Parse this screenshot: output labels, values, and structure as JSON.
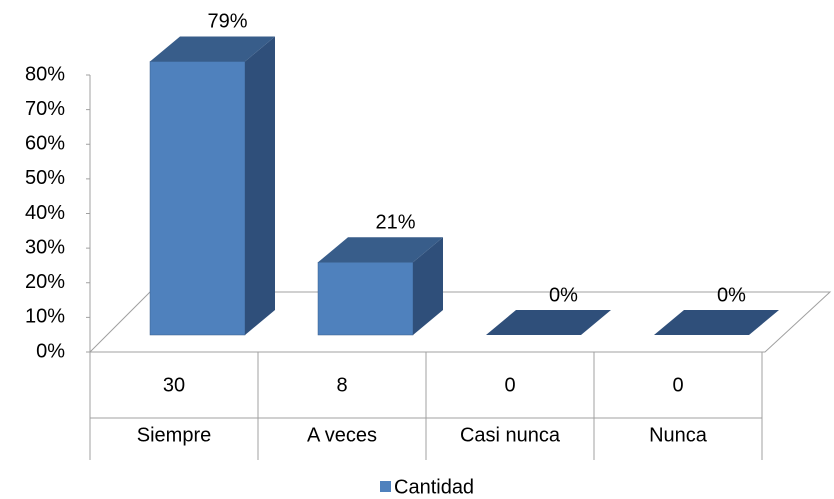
{
  "chart_data": {
    "type": "bar3d",
    "categories": [
      "Siempre",
      "A veces",
      "Casi nunca",
      "Nunca"
    ],
    "series": [
      {
        "name": "Cantidad",
        "color": "#4f81bd",
        "values": [
          79,
          21,
          0,
          0
        ],
        "value_labels": [
          "79%",
          "21%",
          "0%",
          "0%"
        ],
        "counts": [
          30,
          8,
          0,
          0
        ]
      }
    ],
    "ylim": [
      0,
      80
    ],
    "yticks": [
      {
        "value": 0,
        "label": "0%"
      },
      {
        "value": 10,
        "label": "10%"
      },
      {
        "value": 20,
        "label": "20%"
      },
      {
        "value": 30,
        "label": "30%"
      },
      {
        "value": 40,
        "label": "40%"
      },
      {
        "value": 50,
        "label": "50%"
      },
      {
        "value": 60,
        "label": "60%"
      },
      {
        "value": 70,
        "label": "70%"
      },
      {
        "value": 80,
        "label": "80%"
      }
    ],
    "legend": "bottom"
  }
}
